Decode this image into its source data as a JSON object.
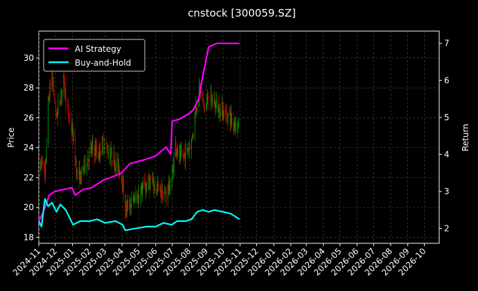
{
  "chart_data": {
    "type": "candlestick+line",
    "title": "cnstock [300059.SZ]",
    "ylabel": "Price",
    "y2label": "Return",
    "ylim": [
      17.6,
      31.8
    ],
    "y2lim": [
      1.6,
      7.33
    ],
    "yticks": [
      18,
      20,
      22,
      24,
      26,
      28,
      30
    ],
    "y2ticks": [
      2,
      3,
      4,
      5,
      6,
      7
    ],
    "xlim": [
      "2024-11-01",
      "2026-10-28"
    ],
    "xticks": [
      "2024-11",
      "2024-12",
      "2025-01",
      "2025-02",
      "2025-03",
      "2025-04",
      "2025-05",
      "2025-06",
      "2025-07",
      "2025-08",
      "2025-09",
      "2025-10",
      "2025-11",
      "2025-12",
      "2026-01",
      "2026-02",
      "2026-03",
      "2026-04",
      "2026-05",
      "2026-06",
      "2026-07",
      "2026-08",
      "2026-09",
      "2026-10"
    ],
    "grid": true,
    "legend_position": "top-left",
    "colors": {
      "up": "#00a000",
      "down": "#cc0000",
      "ai": "#ff00ff",
      "bh": "#00ffff",
      "grid": "#555555"
    },
    "price_path": [
      [
        "2024-11-04",
        22.6
      ],
      [
        "2024-11-08",
        23.5
      ],
      [
        "2024-11-12",
        21.7
      ],
      [
        "2024-11-18",
        27.0
      ],
      [
        "2024-11-25",
        29.0
      ],
      [
        "2024-12-02",
        26.0
      ],
      [
        "2024-12-09",
        27.2
      ],
      [
        "2024-12-16",
        28.5
      ],
      [
        "2024-12-23",
        26.5
      ],
      [
        "2025-01-02",
        24.8
      ],
      [
        "2025-01-09",
        22.3
      ],
      [
        "2025-01-16",
        22.0
      ],
      [
        "2025-01-24",
        23.0
      ],
      [
        "2025-02-07",
        24.0
      ],
      [
        "2025-02-17",
        23.6
      ],
      [
        "2025-02-26",
        24.4
      ],
      [
        "2025-03-10",
        23.6
      ],
      [
        "2025-03-20",
        23.0
      ],
      [
        "2025-03-31",
        22.3
      ],
      [
        "2025-04-07",
        19.9
      ],
      [
        "2025-04-17",
        20.3
      ],
      [
        "2025-04-28",
        20.7
      ],
      [
        "2025-05-12",
        21.4
      ],
      [
        "2025-05-23",
        21.7
      ],
      [
        "2025-06-05",
        21.2
      ],
      [
        "2025-06-18",
        20.8
      ],
      [
        "2025-06-30",
        21.8
      ],
      [
        "2025-07-07",
        24.3
      ],
      [
        "2025-07-14",
        23.2
      ],
      [
        "2025-07-25",
        23.6
      ],
      [
        "2025-08-05",
        24.4
      ],
      [
        "2025-08-13",
        26.8
      ],
      [
        "2025-08-20",
        28.0
      ],
      [
        "2025-08-28",
        26.6
      ],
      [
        "2025-09-05",
        27.3
      ],
      [
        "2025-09-15",
        27.0
      ],
      [
        "2025-09-25",
        26.6
      ],
      [
        "2025-10-10",
        26.2
      ],
      [
        "2025-10-20",
        25.8
      ],
      [
        "2025-10-29",
        25.4
      ]
    ],
    "series": [
      {
        "name": "AI Strategy",
        "points": [
          [
            "2024-11-01",
            2.2
          ],
          [
            "2024-11-08",
            2.4
          ],
          [
            "2024-11-13",
            2.6
          ],
          [
            "2024-11-20",
            2.9
          ],
          [
            "2024-11-30",
            3.0
          ],
          [
            "2024-12-15",
            3.05
          ],
          [
            "2024-12-31",
            3.1
          ],
          [
            "2025-01-06",
            2.9
          ],
          [
            "2025-01-20",
            3.05
          ],
          [
            "2025-02-05",
            3.1
          ],
          [
            "2025-02-25",
            3.3
          ],
          [
            "2025-03-15",
            3.4
          ],
          [
            "2025-03-31",
            3.5
          ],
          [
            "2025-04-15",
            3.75
          ],
          [
            "2025-05-10",
            3.85
          ],
          [
            "2025-05-31",
            3.95
          ],
          [
            "2025-06-20",
            4.2
          ],
          [
            "2025-06-28",
            4.0
          ],
          [
            "2025-07-01",
            4.9
          ],
          [
            "2025-07-14",
            4.95
          ],
          [
            "2025-07-31",
            5.1
          ],
          [
            "2025-08-08",
            5.2
          ],
          [
            "2025-08-18",
            5.5
          ],
          [
            "2025-08-25",
            6.1
          ],
          [
            "2025-09-01",
            6.6
          ],
          [
            "2025-09-05",
            6.9
          ],
          [
            "2025-09-12",
            6.95
          ],
          [
            "2025-09-20",
            7.0
          ],
          [
            "2025-10-31",
            7.0
          ]
        ]
      },
      {
        "name": "Buy-and-Hold",
        "points": [
          [
            "2024-11-01",
            2.2
          ],
          [
            "2024-11-06",
            2.05
          ],
          [
            "2024-11-12",
            2.8
          ],
          [
            "2024-11-18",
            2.6
          ],
          [
            "2024-11-25",
            2.7
          ],
          [
            "2024-12-03",
            2.45
          ],
          [
            "2024-12-10",
            2.65
          ],
          [
            "2024-12-20",
            2.5
          ],
          [
            "2025-01-02",
            2.1
          ],
          [
            "2025-01-15",
            2.2
          ],
          [
            "2025-02-01",
            2.2
          ],
          [
            "2025-02-15",
            2.25
          ],
          [
            "2025-03-01",
            2.15
          ],
          [
            "2025-03-20",
            2.2
          ],
          [
            "2025-04-02",
            2.1
          ],
          [
            "2025-04-07",
            1.95
          ],
          [
            "2025-04-25",
            2.0
          ],
          [
            "2025-05-15",
            2.05
          ],
          [
            "2025-06-01",
            2.05
          ],
          [
            "2025-06-15",
            2.15
          ],
          [
            "2025-06-30",
            2.1
          ],
          [
            "2025-07-10",
            2.2
          ],
          [
            "2025-07-25",
            2.2
          ],
          [
            "2025-08-05",
            2.25
          ],
          [
            "2025-08-15",
            2.45
          ],
          [
            "2025-08-25",
            2.5
          ],
          [
            "2025-09-05",
            2.45
          ],
          [
            "2025-09-15",
            2.5
          ],
          [
            "2025-10-01",
            2.45
          ],
          [
            "2025-10-15",
            2.4
          ],
          [
            "2025-10-31",
            2.25
          ]
        ]
      }
    ]
  }
}
